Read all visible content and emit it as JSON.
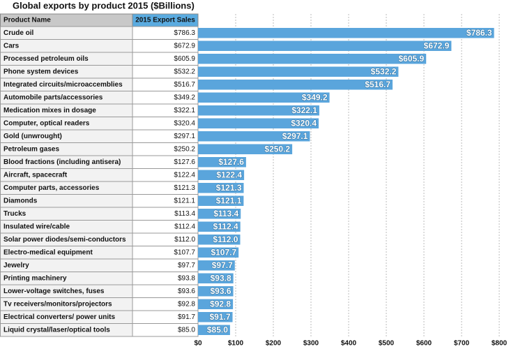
{
  "chart_data": {
    "type": "bar",
    "title": "Global exports by product 2015 ($Billions)",
    "column_headers": [
      "Product Name",
      "2015 Export Sales"
    ],
    "categories": [
      "Crude oil",
      "Cars",
      "Processed petroleum oils",
      "Phone system devices",
      "Integrated circuits/microaccemblies",
      "Automobile parts/accessories",
      "Medication mixes in dosage",
      "Computer, optical readers",
      "Gold (unwrought)",
      "Petroleum gases",
      "Blood fractions (including antisera)",
      "Aircraft, spacecraft",
      "Computer parts, accessories",
      "Diamonds",
      "Trucks",
      "Insulated wire/cable",
      "Solar power diodes/semi-conductors",
      "Electro-medical equipment",
      "Jewelry",
      "Printing machinery",
      "Lower-voltage switches, fuses",
      "Tv receivers/monitors/projectors",
      "Electrical converters/ power units",
      "Liquid crystal/laser/optical tools"
    ],
    "values": [
      786.3,
      672.9,
      605.9,
      532.2,
      516.7,
      349.2,
      322.1,
      320.4,
      297.1,
      250.2,
      127.6,
      122.4,
      121.3,
      121.1,
      113.4,
      112.4,
      112.0,
      107.7,
      97.7,
      93.8,
      93.6,
      92.8,
      91.7,
      85.0
    ],
    "value_labels": [
      "$786.3",
      "$672.9",
      "$605.9",
      "$532.2",
      "$516.7",
      "$349.2",
      "$322.1",
      "$320.4",
      "$297.1",
      "$250.2",
      "$127.6",
      "$122.4",
      "$121.3",
      "$121.1",
      "$113.4",
      "$112.4",
      "$112.0",
      "$107.7",
      "$97.7",
      "$93.8",
      "$93.6",
      "$92.8",
      "$91.7",
      "$85.0"
    ],
    "color": "#5aa5dc",
    "xlim": [
      0,
      800
    ],
    "xticks": [
      {
        "value": 0,
        "label": "$0"
      },
      {
        "value": 100,
        "label": "$100"
      },
      {
        "value": 200,
        "label": "$200"
      },
      {
        "value": 300,
        "label": "$300"
      },
      {
        "value": 400,
        "label": "$400"
      },
      {
        "value": 500,
        "label": "$500"
      },
      {
        "value": 600,
        "label": "$600"
      },
      {
        "value": 700,
        "label": "$700"
      },
      {
        "value": 800,
        "label": "$800"
      }
    ],
    "grid": true
  }
}
